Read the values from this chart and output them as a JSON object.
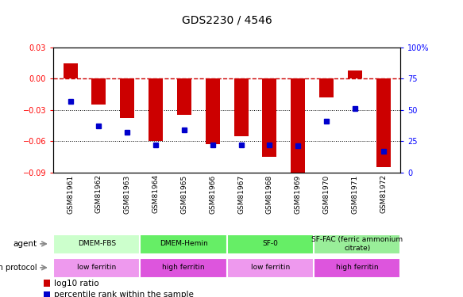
{
  "title": "GDS2230 / 4546",
  "samples": [
    "GSM81961",
    "GSM81962",
    "GSM81963",
    "GSM81964",
    "GSM81965",
    "GSM81966",
    "GSM81967",
    "GSM81968",
    "GSM81969",
    "GSM81970",
    "GSM81971",
    "GSM81972"
  ],
  "log10_ratio": [
    0.015,
    -0.025,
    -0.038,
    -0.06,
    -0.035,
    -0.063,
    -0.055,
    -0.075,
    -0.09,
    -0.018,
    0.008,
    -0.085
  ],
  "percentile_rank": [
    57,
    37,
    32,
    22,
    34,
    22,
    22,
    22,
    21,
    41,
    51,
    17
  ],
  "ylim_left": [
    -0.09,
    0.03
  ],
  "ylim_right": [
    0,
    100
  ],
  "yticks_left": [
    -0.09,
    -0.06,
    -0.03,
    0,
    0.03
  ],
  "yticks_right": [
    0,
    25,
    50,
    75,
    100
  ],
  "bar_color": "#cc0000",
  "dot_color": "#0000cc",
  "zero_line_color": "#cc0000",
  "agent_groups": [
    {
      "label": "DMEM-FBS",
      "start": 0,
      "end": 3,
      "color": "#ccffcc"
    },
    {
      "label": "DMEM-Hemin",
      "start": 3,
      "end": 6,
      "color": "#66ee66"
    },
    {
      "label": "SF-0",
      "start": 6,
      "end": 9,
      "color": "#66ee66"
    },
    {
      "label": "SF-FAC (ferric ammonium\ncitrate)",
      "start": 9,
      "end": 12,
      "color": "#99ee99"
    }
  ],
  "growth_groups": [
    {
      "label": "low ferritin",
      "start": 0,
      "end": 3,
      "color": "#ee99ee"
    },
    {
      "label": "high ferritin",
      "start": 3,
      "end": 6,
      "color": "#dd55dd"
    },
    {
      "label": "low ferritin",
      "start": 6,
      "end": 9,
      "color": "#ee99ee"
    },
    {
      "label": "high ferritin",
      "start": 9,
      "end": 12,
      "color": "#dd55dd"
    }
  ],
  "agent_label": "agent",
  "growth_label": "growth protocol",
  "legend_bar": "log10 ratio",
  "legend_dot": "percentile rank within the sample",
  "background_color": "#ffffff"
}
